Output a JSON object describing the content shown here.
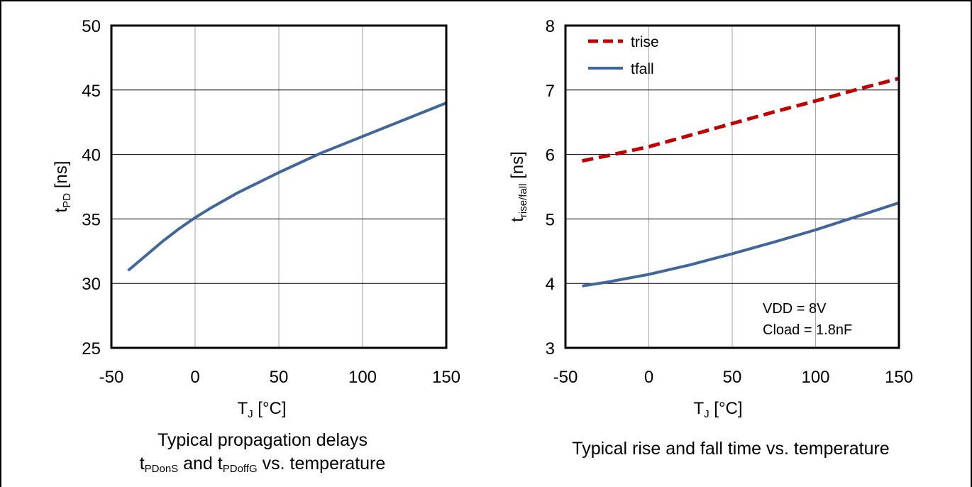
{
  "colors": {
    "tfall": "#41669b",
    "trise": "#c00000",
    "grid": "#a6a6a6",
    "axis": "#000000"
  },
  "charts": [
    {
      "caption_line1": "Typical propagation delays",
      "caption_line2_t1": "t",
      "caption_line2_s1": "PDonS",
      "caption_line2_and": " and t",
      "caption_line2_s2": "PDoffG",
      "caption_line2_end": " vs. temperature",
      "xlabel_main": "T",
      "xlabel_sub": "J",
      "xlabel_unit": " [°C]",
      "ylabel_main": "t",
      "ylabel_sub": "PD",
      "ylabel_unit": " [ns]"
    },
    {
      "caption": "Typical rise and fall time vs. temperature",
      "xlabel_main": "T",
      "xlabel_sub": "J",
      "xlabel_unit": " [°C]",
      "ylabel_main": "t",
      "ylabel_sub": "rise/fall",
      "ylabel_unit": " [ns]",
      "annotation_line1": "VDD = 8V",
      "annotation_line2": "Cload = 1.8nF"
    }
  ],
  "chart_data": [
    {
      "type": "line",
      "xlim": [
        -50,
        150
      ],
      "ylim": [
        25,
        50
      ],
      "x_ticks": [
        -50,
        0,
        50,
        100,
        150
      ],
      "y_ticks": [
        25,
        30,
        35,
        40,
        45,
        50
      ],
      "x_tick_labels": [
        "-50",
        "0",
        "50",
        "100",
        "150"
      ],
      "y_tick_labels": [
        "25",
        "30",
        "35",
        "40",
        "45",
        "50"
      ],
      "grid": true,
      "series": [
        {
          "color": "#41669b",
          "dash": "solid",
          "x": [
            -40,
            -30,
            -20,
            -10,
            0,
            10,
            25,
            50,
            75,
            100,
            125,
            150
          ],
          "y": [
            31.0,
            32.1,
            33.2,
            34.2,
            35.1,
            35.9,
            37.0,
            38.6,
            40.1,
            41.4,
            42.7,
            44.0
          ]
        }
      ]
    },
    {
      "type": "line",
      "xlim": [
        -50,
        150
      ],
      "ylim": [
        3,
        8
      ],
      "x_ticks": [
        -50,
        0,
        50,
        100,
        150
      ],
      "y_ticks": [
        3,
        4,
        5,
        6,
        7,
        8
      ],
      "x_tick_labels": [
        "-50",
        "0",
        "50",
        "100",
        "150"
      ],
      "y_tick_labels": [
        "3",
        "4",
        "5",
        "6",
        "7",
        "8"
      ],
      "grid": true,
      "legend": "top-left",
      "series": [
        {
          "name": "trise",
          "color": "#c00000",
          "dash": "dashed",
          "x": [
            -40,
            -25,
            0,
            25,
            50,
            75,
            100,
            125,
            150
          ],
          "y": [
            5.9,
            5.98,
            6.12,
            6.3,
            6.48,
            6.66,
            6.83,
            7.01,
            7.18
          ]
        },
        {
          "name": "tfall",
          "color": "#41669b",
          "dash": "solid",
          "x": [
            -40,
            -25,
            0,
            25,
            50,
            75,
            100,
            125,
            150
          ],
          "y": [
            3.96,
            4.02,
            4.14,
            4.29,
            4.46,
            4.64,
            4.83,
            5.04,
            5.25
          ]
        }
      ]
    }
  ]
}
